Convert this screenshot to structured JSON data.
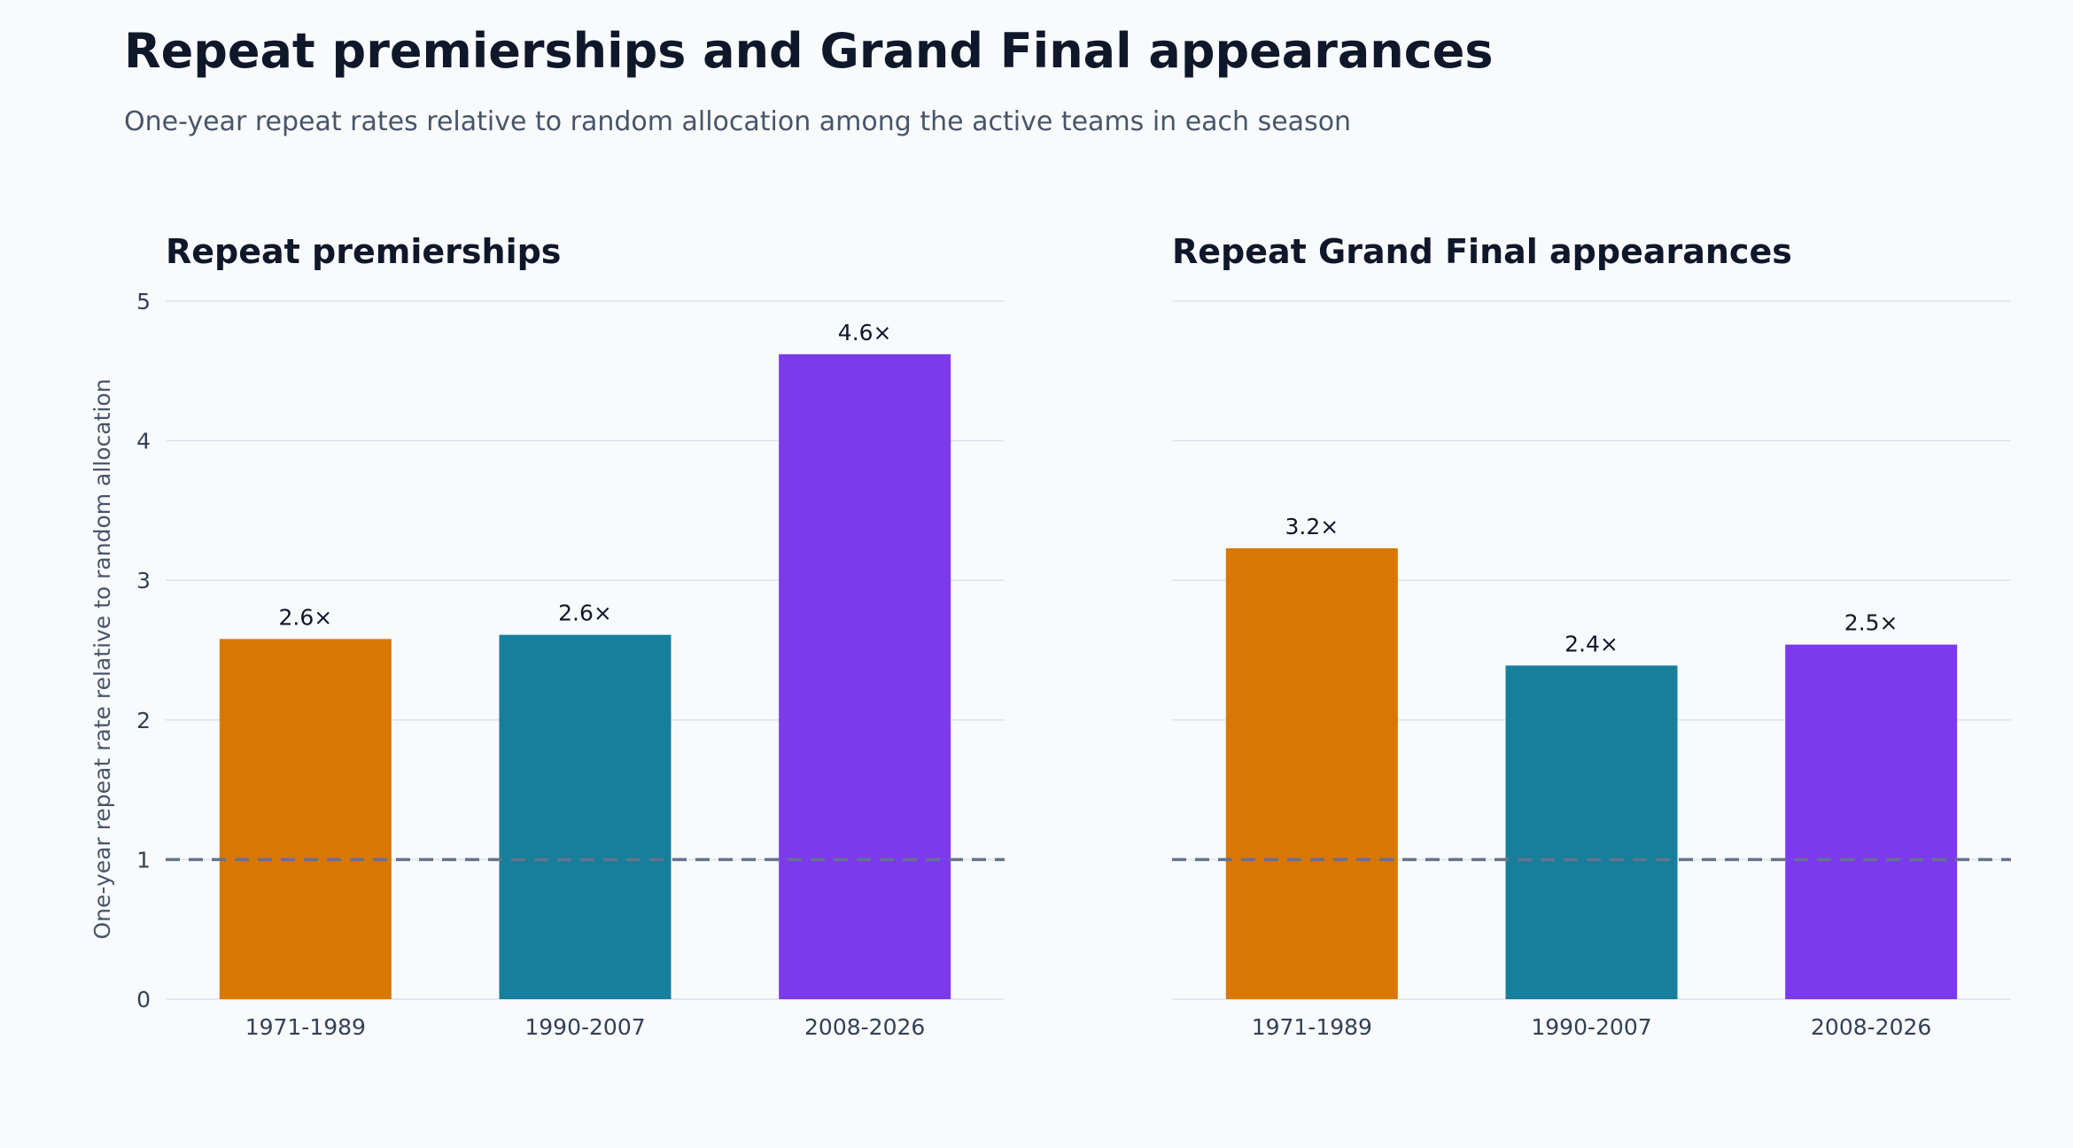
{
  "title": "Repeat premierships and Grand Final appearances",
  "subtitle": "One-year repeat rates relative to random allocation among the active teams in each season",
  "colors": {
    "1971-1989": "#d97706",
    "1990-2007": "#177e9b",
    "2008-2026": "#7c3aed",
    "reference_line": "#64748b",
    "grid": "#dbe3ec",
    "text": "#0f172a",
    "tick": "#334155"
  },
  "chart_data": [
    {
      "type": "bar",
      "title": "Repeat premierships",
      "ylabel": "One-year repeat rate relative to random allocation",
      "categories": [
        "1971-1989",
        "1990-2007",
        "2008-2026"
      ],
      "values": [
        2.58,
        2.61,
        4.62
      ],
      "data_labels": [
        "2.6×",
        "2.6×",
        "4.6×"
      ],
      "ylim": [
        0,
        5
      ],
      "yticks": [
        "0",
        "1",
        "2",
        "3",
        "4",
        "5"
      ],
      "reference_line": 1,
      "grid": true
    },
    {
      "type": "bar",
      "title": "Repeat Grand Final appearances",
      "ylabel": "",
      "categories": [
        "1971-1989",
        "1990-2007",
        "2008-2026"
      ],
      "values": [
        3.23,
        2.39,
        2.54
      ],
      "data_labels": [
        "3.2×",
        "2.4×",
        "2.5×"
      ],
      "ylim": [
        0,
        5
      ],
      "yticks": [],
      "reference_line": 1,
      "grid": true
    }
  ]
}
